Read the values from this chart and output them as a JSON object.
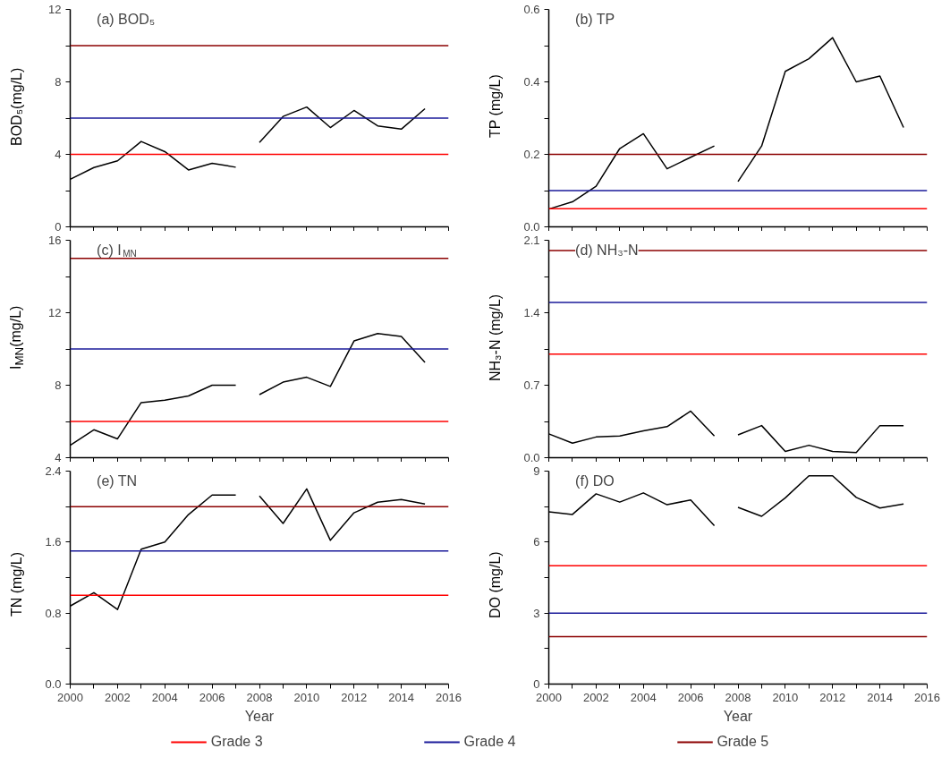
{
  "chart_data": [
    {
      "type": "line",
      "title": "(a) BOD₅",
      "ylabel": "BOD₅(mg/L)",
      "xlim": [
        2000,
        2016
      ],
      "ylim": [
        0,
        12
      ],
      "tick_labels": "y",
      "xticks": [
        2000,
        {
          "value": 2001,
          "label": null
        },
        2002,
        {
          "value": 2003,
          "label": null
        },
        2004,
        {
          "value": 2005,
          "label": null
        },
        2006,
        {
          "value": 2007,
          "label": null
        },
        2008,
        {
          "value": 2009,
          "label": null
        },
        2010,
        {
          "value": 2011,
          "label": null
        },
        2012,
        {
          "value": 2013,
          "label": null
        },
        2014,
        {
          "value": 2015,
          "label": null
        },
        2016
      ],
      "yticks": [
        0,
        {
          "value": 2,
          "label": null
        },
        4,
        {
          "value": 6,
          "label": null
        },
        8,
        {
          "value": 10,
          "label": null
        },
        12
      ],
      "series": [
        {
          "color": "#000000",
          "x": [
            2000,
            2001,
            2002,
            2003,
            2004,
            2005,
            2006,
            2007
          ],
          "values": [
            2.62,
            3.27,
            3.64,
            4.71,
            4.15,
            3.14,
            3.51,
            3.29
          ]
        },
        {
          "color": "#000000",
          "x": [
            2008,
            2009,
            2010,
            2011,
            2012,
            2013,
            2014,
            2015
          ],
          "values": [
            4.65,
            6.09,
            6.61,
            5.48,
            6.42,
            5.57,
            5.39,
            6.52
          ]
        }
      ],
      "ref_lines": [
        {
          "axis": "y",
          "value": 4,
          "color": "#ff0000"
        },
        {
          "axis": "y",
          "value": 6,
          "color": "#1a1a9a"
        },
        {
          "axis": "y",
          "value": 10,
          "color": "#8b0000"
        }
      ]
    },
    {
      "type": "line",
      "title": "(b) TP",
      "ylabel": "TP (mg/L)",
      "xlim": [
        2000,
        2016
      ],
      "ylim": [
        0,
        0.6
      ],
      "tick_labels": "y",
      "xticks": [
        2000,
        {
          "value": 2001,
          "label": null
        },
        2002,
        {
          "value": 2003,
          "label": null
        },
        2004,
        {
          "value": 2005,
          "label": null
        },
        2006,
        {
          "value": 2007,
          "label": null
        },
        2008,
        {
          "value": 2009,
          "label": null
        },
        2010,
        {
          "value": 2011,
          "label": null
        },
        2012,
        {
          "value": 2013,
          "label": null
        },
        2014,
        {
          "value": 2015,
          "label": null
        },
        2016
      ],
      "yticks": [
        {
          "value": 0,
          "label": "0.0"
        },
        {
          "value": 0.1,
          "label": null
        },
        0.2,
        {
          "value": 0.3,
          "label": null
        },
        0.4,
        {
          "value": 0.5,
          "label": null
        },
        0.6
      ],
      "series": [
        {
          "color": "#000000",
          "x": [
            2000,
            2001,
            2002,
            2003,
            2004,
            2005,
            2006,
            2007
          ],
          "values": [
            0.049,
            0.069,
            0.112,
            0.216,
            0.257,
            0.16,
            0.192,
            0.223
          ]
        },
        {
          "color": "#000000",
          "x": [
            2008,
            2009,
            2010,
            2011,
            2012,
            2013,
            2014,
            2015
          ],
          "values": [
            0.125,
            0.223,
            0.429,
            0.464,
            0.522,
            0.4,
            0.416,
            0.274
          ]
        }
      ],
      "ref_lines": [
        {
          "axis": "y",
          "value": 0.05,
          "color": "#ff0000"
        },
        {
          "axis": "y",
          "value": 0.1,
          "color": "#1a1a9a"
        },
        {
          "axis": "y",
          "value": 0.2,
          "color": "#8b0000"
        }
      ]
    },
    {
      "type": "line",
      "title": "(c) I$_{MN}$",
      "ylabel": "I$_{MN}$(mg/L)",
      "xlim": [
        2000,
        2016
      ],
      "ylim": [
        4,
        16
      ],
      "tick_labels": "y",
      "xticks": [
        2000,
        {
          "value": 2001,
          "label": null
        },
        2002,
        {
          "value": 2003,
          "label": null
        },
        2004,
        {
          "value": 2005,
          "label": null
        },
        2006,
        {
          "value": 2007,
          "label": null
        },
        2008,
        {
          "value": 2009,
          "label": null
        },
        2010,
        {
          "value": 2011,
          "label": null
        },
        2012,
        {
          "value": 2013,
          "label": null
        },
        2014,
        {
          "value": 2015,
          "label": null
        },
        2016
      ],
      "yticks": [
        4,
        {
          "value": 6,
          "label": null
        },
        8,
        {
          "value": 10,
          "label": null
        },
        12,
        {
          "value": 14,
          "label": null
        },
        16
      ],
      "series": [
        {
          "color": "#000000",
          "x": [
            2000,
            2001,
            2002,
            2003,
            2004,
            2005,
            2006,
            2007
          ],
          "values": [
            4.69,
            5.54,
            5.04,
            7.04,
            7.17,
            7.41,
            8.0,
            8.0
          ]
        },
        {
          "color": "#000000",
          "x": [
            2008,
            2009,
            2010,
            2011,
            2012,
            2013,
            2014,
            2015
          ],
          "values": [
            7.48,
            8.17,
            8.44,
            7.93,
            10.44,
            10.85,
            10.69,
            9.26
          ]
        }
      ],
      "ref_lines": [
        {
          "axis": "y",
          "value": 6,
          "color": "#ff0000"
        },
        {
          "axis": "y",
          "value": 10,
          "color": "#1a1a9a"
        },
        {
          "axis": "y",
          "value": 15,
          "color": "#8b0000"
        }
      ]
    },
    {
      "type": "line",
      "title": "(d) NH₃-N",
      "ylabel": "NH₃-N (mg/L)",
      "xlim": [
        2000,
        2016
      ],
      "ylim": [
        0,
        2.1
      ],
      "tick_labels": "y",
      "xticks": [
        2000,
        {
          "value": 2001,
          "label": null
        },
        2002,
        {
          "value": 2003,
          "label": null
        },
        2004,
        {
          "value": 2005,
          "label": null
        },
        2006,
        {
          "value": 2007,
          "label": null
        },
        2008,
        {
          "value": 2009,
          "label": null
        },
        2010,
        {
          "value": 2011,
          "label": null
        },
        2012,
        {
          "value": 2013,
          "label": null
        },
        2014,
        {
          "value": 2015,
          "label": null
        },
        2016
      ],
      "yticks": [
        {
          "value": 0,
          "label": "0.0"
        },
        {
          "value": 0.35,
          "label": null
        },
        0.7,
        {
          "value": 1.05,
          "label": null
        },
        1.4,
        {
          "value": 1.75,
          "label": null
        },
        2.1
      ],
      "series": [
        {
          "color": "#000000",
          "x": [
            2000,
            2001,
            2002,
            2003,
            2004,
            2005,
            2006,
            2007
          ],
          "values": [
            0.23,
            0.14,
            0.2,
            0.21,
            0.26,
            0.3,
            0.45,
            0.21
          ]
        },
        {
          "color": "#000000",
          "x": [
            2008,
            2009,
            2010,
            2011,
            2012,
            2013,
            2014,
            2015
          ],
          "values": [
            0.22,
            0.31,
            0.06,
            0.12,
            0.06,
            0.05,
            0.31,
            0.31
          ]
        }
      ],
      "ref_lines": [
        {
          "axis": "y",
          "value": 1.0,
          "color": "#ff0000"
        },
        {
          "axis": "y",
          "value": 1.5,
          "color": "#1a1a9a"
        },
        {
          "axis": "y",
          "value": 2.0,
          "color": "#8b0000"
        }
      ]
    },
    {
      "type": "line",
      "title": "(e) TN",
      "ylabel": "TN (mg/L)",
      "xlabel": "Year",
      "xlim": [
        2000,
        2016
      ],
      "ylim": [
        0,
        2.4
      ],
      "legend": "bottom",
      "xticks": [
        2000,
        {
          "value": 2001,
          "label": null
        },
        2002,
        {
          "value": 2003,
          "label": null
        },
        2004,
        {
          "value": 2005,
          "label": null
        },
        2006,
        {
          "value": 2007,
          "label": null
        },
        2008,
        {
          "value": 2009,
          "label": null
        },
        2010,
        {
          "value": 2011,
          "label": null
        },
        2012,
        {
          "value": 2013,
          "label": null
        },
        2014,
        {
          "value": 2015,
          "label": null
        },
        2016
      ],
      "yticks": [
        {
          "value": 0,
          "label": "0.0"
        },
        {
          "value": 0.4,
          "label": null
        },
        0.8,
        {
          "value": 1.2,
          "label": null
        },
        1.6,
        {
          "value": 2.0,
          "label": null
        },
        2.4
      ],
      "series": [
        {
          "color": "#000000",
          "x": [
            2000,
            2001,
            2002,
            2003,
            2004,
            2005,
            2006,
            2007
          ],
          "values": [
            0.88,
            1.03,
            0.84,
            1.52,
            1.6,
            1.91,
            2.13,
            2.13
          ]
        },
        {
          "color": "#000000",
          "x": [
            2008,
            2009,
            2010,
            2011,
            2012,
            2013,
            2014,
            2015
          ],
          "values": [
            2.12,
            1.81,
            2.2,
            1.62,
            1.93,
            2.05,
            2.08,
            2.03
          ]
        }
      ],
      "ref_lines": [
        {
          "axis": "y",
          "value": 1.0,
          "label": "Grade 3",
          "color": "#ff0000"
        },
        {
          "axis": "y",
          "value": 1.5,
          "label": "Grade 4",
          "color": "#1a1a9a"
        },
        {
          "axis": "y",
          "value": 2.0,
          "label": "Grade 5",
          "color": "#8b0000"
        }
      ]
    },
    {
      "type": "line",
      "title": "(f) DO",
      "ylabel": "DO (mg/L)",
      "xlabel": "Year",
      "xlim": [
        2000,
        2016
      ],
      "ylim": [
        0,
        9
      ],
      "xticks": [
        2000,
        {
          "value": 2001,
          "label": null
        },
        2002,
        {
          "value": 2003,
          "label": null
        },
        2004,
        {
          "value": 2005,
          "label": null
        },
        2006,
        {
          "value": 2007,
          "label": null
        },
        2008,
        {
          "value": 2009,
          "label": null
        },
        2010,
        {
          "value": 2011,
          "label": null
        },
        2012,
        {
          "value": 2013,
          "label": null
        },
        2014,
        {
          "value": 2015,
          "label": null
        },
        2016
      ],
      "yticks": [
        0,
        {
          "value": 1.5,
          "label": null
        },
        3,
        {
          "value": 4.5,
          "label": null
        },
        6,
        {
          "value": 7.5,
          "label": null
        },
        9
      ],
      "series": [
        {
          "color": "#000000",
          "x": [
            2000,
            2001,
            2002,
            2003,
            2004,
            2005,
            2006,
            2007
          ],
          "values": [
            7.28,
            7.17,
            8.04,
            7.69,
            8.08,
            7.58,
            7.78,
            6.69
          ]
        },
        {
          "color": "#000000",
          "x": [
            2008,
            2009,
            2010,
            2011,
            2012,
            2013,
            2014,
            2015
          ],
          "values": [
            7.47,
            7.09,
            7.87,
            8.8,
            8.8,
            7.89,
            7.44,
            7.61
          ]
        }
      ],
      "ref_lines": [
        {
          "axis": "y",
          "value": 5,
          "color": "#ff0000"
        },
        {
          "axis": "y",
          "value": 3,
          "color": "#1a1a9a"
        },
        {
          "axis": "y",
          "value": 2,
          "color": "#8b0000"
        }
      ]
    }
  ]
}
